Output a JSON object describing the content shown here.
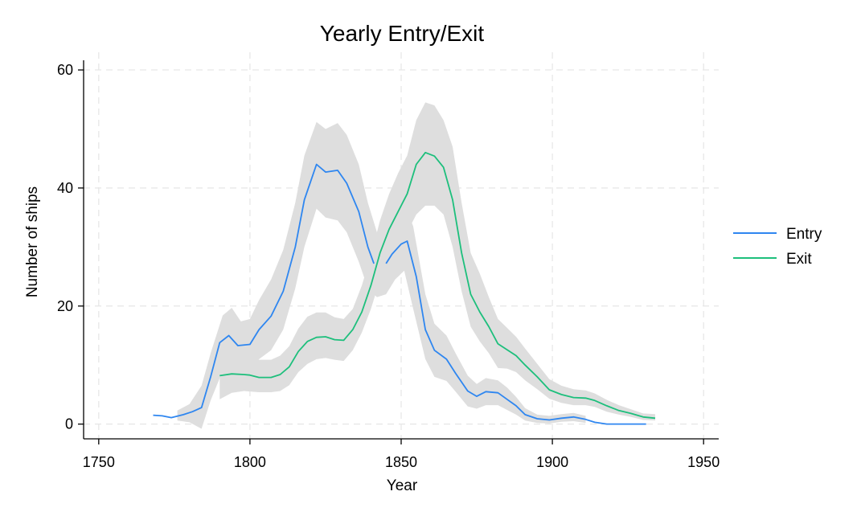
{
  "chart_data": {
    "type": "line",
    "title": "Yearly Entry/Exit",
    "xlabel": "Year",
    "ylabel": "Number of ships",
    "xlim": [
      1745,
      1955
    ],
    "ylim": [
      -2.5,
      63
    ],
    "x_ticks": [
      1750,
      1800,
      1850,
      1900,
      1950
    ],
    "y_ticks": [
      0,
      20,
      40,
      60
    ],
    "grid": true,
    "legend_position": "right",
    "series": [
      {
        "name": "Entry",
        "color": "#2e86f0",
        "points": [
          [
            1768,
            1.5
          ],
          [
            1771,
            1.4
          ],
          [
            1774,
            1.1
          ],
          [
            1778,
            1.6
          ],
          [
            1781,
            2.1
          ],
          [
            1784,
            2.8
          ],
          [
            1787,
            8.0
          ],
          [
            1790,
            13.8
          ],
          [
            1793,
            15.0
          ],
          [
            1796,
            13.3
          ],
          [
            1800,
            13.5
          ],
          [
            1803,
            16.0
          ],
          [
            1807,
            18.3
          ],
          [
            1811,
            22.5
          ],
          [
            1815,
            30.0
          ],
          [
            1818,
            38.0
          ],
          [
            1822,
            44.0
          ],
          [
            1825,
            42.7
          ],
          [
            1829,
            43.0
          ],
          [
            1832,
            40.8
          ],
          [
            1836,
            36.0
          ],
          [
            1839,
            30.0
          ],
          [
            1841,
            27.2
          ],
          [
            1843,
            null
          ],
          [
            1845,
            27.2
          ],
          [
            1847,
            28.8
          ],
          [
            1850,
            30.5
          ],
          [
            1852,
            31.0
          ],
          [
            1855,
            25.0
          ],
          [
            1858,
            16.0
          ],
          [
            1861,
            12.5
          ],
          [
            1865,
            11.0
          ],
          [
            1868,
            8.6
          ],
          [
            1872,
            5.6
          ],
          [
            1875,
            4.7
          ],
          [
            1878,
            5.5
          ],
          [
            1882,
            5.3
          ],
          [
            1885,
            4.2
          ],
          [
            1888,
            3.1
          ],
          [
            1891,
            1.6
          ],
          [
            1895,
            0.9
          ],
          [
            1899,
            0.7
          ],
          [
            1903,
            1.0
          ],
          [
            1907,
            1.2
          ],
          [
            1911,
            0.8
          ],
          [
            1914,
            0.3
          ],
          [
            1918,
            0.0
          ],
          [
            1922,
            0.0
          ],
          [
            1926,
            0.0
          ],
          [
            1931,
            0.0
          ]
        ],
        "ci_band": [
          [
            1776,
            0.6,
            2.3
          ],
          [
            1780,
            0.3,
            3.4
          ],
          [
            1784,
            -0.8,
            6.5
          ],
          [
            1787,
            4.0,
            12.0
          ],
          [
            1791,
            9.0,
            18.4
          ],
          [
            1794,
            10.5,
            19.7
          ],
          [
            1797,
            9.2,
            17.4
          ],
          [
            1800,
            9.2,
            17.8
          ],
          [
            1803,
            11.0,
            21.0
          ],
          [
            1807,
            12.5,
            24.5
          ],
          [
            1811,
            16.0,
            29.5
          ],
          [
            1815,
            23.0,
            37.5
          ],
          [
            1818,
            30.0,
            45.5
          ],
          [
            1822,
            36.5,
            51.2
          ],
          [
            1825,
            35.0,
            50.0
          ],
          [
            1829,
            34.5,
            51.0
          ],
          [
            1832,
            32.5,
            49.0
          ],
          [
            1836,
            27.5,
            44.0
          ],
          [
            1839,
            23.0,
            37.5
          ],
          [
            1842,
            21.5,
            32.5
          ],
          [
            1845,
            22.0,
            33.0
          ],
          [
            1848,
            24.5,
            36.5
          ],
          [
            1851,
            26.0,
            37.5
          ],
          [
            1854,
            19.5,
            33.5
          ],
          [
            1858,
            11.0,
            22.0
          ],
          [
            1861,
            8.0,
            17.0
          ],
          [
            1865,
            7.3,
            15.0
          ],
          [
            1868,
            5.5,
            12.0
          ],
          [
            1872,
            3.0,
            8.2
          ],
          [
            1875,
            2.6,
            6.8
          ],
          [
            1878,
            3.2,
            7.8
          ],
          [
            1882,
            3.2,
            7.4
          ],
          [
            1885,
            2.4,
            6.2
          ],
          [
            1888,
            1.6,
            4.6
          ],
          [
            1891,
            0.6,
            2.7
          ],
          [
            1895,
            0.2,
            1.6
          ],
          [
            1899,
            0.1,
            1.4
          ],
          [
            1903,
            0.4,
            1.7
          ],
          [
            1907,
            0.5,
            1.9
          ],
          [
            1911,
            0.2,
            1.4
          ]
        ]
      },
      {
        "name": "Exit",
        "color": "#1dbf7c",
        "points": [
          [
            1790,
            8.2
          ],
          [
            1794,
            8.5
          ],
          [
            1798,
            8.4
          ],
          [
            1800,
            8.3
          ],
          [
            1803,
            7.9
          ],
          [
            1807,
            7.9
          ],
          [
            1810,
            8.4
          ],
          [
            1813,
            9.7
          ],
          [
            1816,
            12.3
          ],
          [
            1819,
            14.0
          ],
          [
            1822,
            14.7
          ],
          [
            1825,
            14.8
          ],
          [
            1828,
            14.3
          ],
          [
            1831,
            14.2
          ],
          [
            1834,
            16.0
          ],
          [
            1837,
            19.0
          ],
          [
            1840,
            23.5
          ],
          [
            1843,
            29.0
          ],
          [
            1846,
            33.0
          ],
          [
            1849,
            36.0
          ],
          [
            1852,
            39.0
          ],
          [
            1855,
            44.0
          ],
          [
            1858,
            46.0
          ],
          [
            1861,
            45.4
          ],
          [
            1864,
            43.5
          ],
          [
            1867,
            38.0
          ],
          [
            1870,
            29.0
          ],
          [
            1873,
            22.0
          ],
          [
            1876,
            19.0
          ],
          [
            1879,
            16.5
          ],
          [
            1882,
            13.6
          ],
          [
            1885,
            12.6
          ],
          [
            1888,
            11.6
          ],
          [
            1891,
            10.0
          ],
          [
            1895,
            8.0
          ],
          [
            1899,
            5.8
          ],
          [
            1903,
            5.0
          ],
          [
            1907,
            4.5
          ],
          [
            1911,
            4.4
          ],
          [
            1914,
            4.0
          ],
          [
            1918,
            3.1
          ],
          [
            1922,
            2.3
          ],
          [
            1926,
            1.8
          ],
          [
            1930,
            1.2
          ],
          [
            1934,
            1.0
          ]
        ],
        "ci_band": [
          [
            1790,
            4.2,
            11.8
          ],
          [
            1794,
            5.3,
            12.2
          ],
          [
            1798,
            5.6,
            11.5
          ],
          [
            1803,
            5.4,
            10.9
          ],
          [
            1807,
            5.4,
            10.9
          ],
          [
            1810,
            5.6,
            11.6
          ],
          [
            1813,
            6.6,
            13.2
          ],
          [
            1816,
            8.8,
            16.2
          ],
          [
            1819,
            10.2,
            18.2
          ],
          [
            1822,
            11.0,
            18.9
          ],
          [
            1825,
            11.2,
            18.9
          ],
          [
            1828,
            10.9,
            18.1
          ],
          [
            1831,
            10.7,
            17.8
          ],
          [
            1834,
            12.5,
            19.5
          ],
          [
            1837,
            15.5,
            23.5
          ],
          [
            1840,
            19.5,
            28.5
          ],
          [
            1843,
            24.5,
            34.5
          ],
          [
            1846,
            28.0,
            39.0
          ],
          [
            1849,
            30.5,
            42.5
          ],
          [
            1852,
            32.5,
            45.5
          ],
          [
            1855,
            35.5,
            51.5
          ],
          [
            1858,
            37.0,
            54.5
          ],
          [
            1861,
            37.0,
            54.0
          ],
          [
            1864,
            35.5,
            51.5
          ],
          [
            1867,
            30.0,
            47.0
          ],
          [
            1870,
            22.5,
            37.5
          ],
          [
            1873,
            16.5,
            29.0
          ],
          [
            1876,
            14.0,
            25.5
          ],
          [
            1879,
            12.0,
            21.5
          ],
          [
            1882,
            9.5,
            17.8
          ],
          [
            1885,
            9.4,
            16.3
          ],
          [
            1888,
            8.8,
            14.8
          ],
          [
            1891,
            7.4,
            12.8
          ],
          [
            1895,
            5.9,
            10.2
          ],
          [
            1899,
            4.3,
            7.6
          ],
          [
            1903,
            3.6,
            6.5
          ],
          [
            1907,
            3.2,
            5.9
          ],
          [
            1911,
            3.2,
            5.7
          ],
          [
            1914,
            2.9,
            5.2
          ],
          [
            1918,
            2.1,
            4.1
          ],
          [
            1922,
            1.6,
            3.2
          ],
          [
            1926,
            1.2,
            2.5
          ],
          [
            1930,
            0.7,
            1.8
          ],
          [
            1934,
            0.6,
            1.7
          ]
        ]
      }
    ]
  }
}
